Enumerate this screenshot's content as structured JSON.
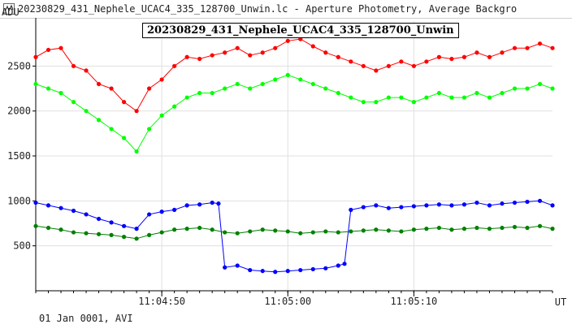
{
  "window": {
    "title": "20230829_431_Nephele_UCAC4_335_128700_Unwin.lc - Aperture Photometry, Average Backgro",
    "icon": "lightcurve-app-icon"
  },
  "footer": "01 Jan 0001, AVI",
  "chart_data": {
    "type": "scatter",
    "title": "20230829_431_Nephele_UCAC4_335_128700_Unwin",
    "ylabel": "ADU",
    "xlabel": "UT",
    "ylim": [
      0,
      3000
    ],
    "xlim": [
      0,
      82
    ],
    "x_tick_labels": [
      {
        "label": "11:04:50",
        "t": 20
      },
      {
        "label": "11:05:00",
        "t": 40
      },
      {
        "label": "11:05:10",
        "t": 60
      }
    ],
    "y_ticks": [
      500,
      1000,
      1500,
      2000,
      2500
    ],
    "grid": true,
    "series": [
      {
        "color": "#ff0000",
        "points": [
          [
            0,
            2600
          ],
          [
            2,
            2680
          ],
          [
            4,
            2700
          ],
          [
            6,
            2500
          ],
          [
            8,
            2450
          ],
          [
            10,
            2300
          ],
          [
            12,
            2250
          ],
          [
            14,
            2100
          ],
          [
            16,
            2000
          ],
          [
            18,
            2250
          ],
          [
            20,
            2350
          ],
          [
            22,
            2500
          ],
          [
            24,
            2600
          ],
          [
            26,
            2580
          ],
          [
            28,
            2620
          ],
          [
            30,
            2650
          ],
          [
            32,
            2700
          ],
          [
            34,
            2620
          ],
          [
            36,
            2650
          ],
          [
            38,
            2700
          ],
          [
            40,
            2780
          ],
          [
            42,
            2800
          ],
          [
            44,
            2720
          ],
          [
            46,
            2650
          ],
          [
            48,
            2600
          ],
          [
            50,
            2550
          ],
          [
            52,
            2500
          ],
          [
            54,
            2450
          ],
          [
            56,
            2500
          ],
          [
            58,
            2550
          ],
          [
            60,
            2500
          ],
          [
            62,
            2550
          ],
          [
            64,
            2600
          ],
          [
            66,
            2580
          ],
          [
            68,
            2600
          ],
          [
            70,
            2650
          ],
          [
            72,
            2600
          ],
          [
            74,
            2650
          ],
          [
            76,
            2700
          ],
          [
            78,
            2700
          ],
          [
            80,
            2750
          ],
          [
            82,
            2700
          ]
        ]
      },
      {
        "color": "#00ff00",
        "points": [
          [
            0,
            2300
          ],
          [
            2,
            2250
          ],
          [
            4,
            2200
          ],
          [
            6,
            2100
          ],
          [
            8,
            2000
          ],
          [
            10,
            1900
          ],
          [
            12,
            1800
          ],
          [
            14,
            1700
          ],
          [
            16,
            1550
          ],
          [
            18,
            1800
          ],
          [
            20,
            1950
          ],
          [
            22,
            2050
          ],
          [
            24,
            2150
          ],
          [
            26,
            2200
          ],
          [
            28,
            2200
          ],
          [
            30,
            2250
          ],
          [
            32,
            2300
          ],
          [
            34,
            2250
          ],
          [
            36,
            2300
          ],
          [
            38,
            2350
          ],
          [
            40,
            2400
          ],
          [
            42,
            2350
          ],
          [
            44,
            2300
          ],
          [
            46,
            2250
          ],
          [
            48,
            2200
          ],
          [
            50,
            2150
          ],
          [
            52,
            2100
          ],
          [
            54,
            2100
          ],
          [
            56,
            2150
          ],
          [
            58,
            2150
          ],
          [
            60,
            2100
          ],
          [
            62,
            2150
          ],
          [
            64,
            2200
          ],
          [
            66,
            2150
          ],
          [
            68,
            2150
          ],
          [
            70,
            2200
          ],
          [
            72,
            2150
          ],
          [
            74,
            2200
          ],
          [
            76,
            2250
          ],
          [
            78,
            2250
          ],
          [
            80,
            2300
          ],
          [
            82,
            2250
          ]
        ]
      },
      {
        "color": "#0000ff",
        "points": [
          [
            0,
            980
          ],
          [
            2,
            950
          ],
          [
            4,
            920
          ],
          [
            6,
            890
          ],
          [
            8,
            850
          ],
          [
            10,
            800
          ],
          [
            12,
            760
          ],
          [
            14,
            720
          ],
          [
            16,
            690
          ],
          [
            18,
            850
          ],
          [
            20,
            880
          ],
          [
            22,
            900
          ],
          [
            24,
            950
          ],
          [
            26,
            960
          ],
          [
            28,
            980
          ],
          [
            29,
            970
          ],
          [
            30,
            260
          ],
          [
            32,
            280
          ],
          [
            34,
            230
          ],
          [
            36,
            220
          ],
          [
            38,
            210
          ],
          [
            40,
            220
          ],
          [
            42,
            230
          ],
          [
            44,
            240
          ],
          [
            46,
            250
          ],
          [
            48,
            280
          ],
          [
            49,
            300
          ],
          [
            50,
            900
          ],
          [
            52,
            930
          ],
          [
            54,
            950
          ],
          [
            56,
            920
          ],
          [
            58,
            930
          ],
          [
            60,
            940
          ],
          [
            62,
            950
          ],
          [
            64,
            960
          ],
          [
            66,
            950
          ],
          [
            68,
            960
          ],
          [
            70,
            980
          ],
          [
            72,
            950
          ],
          [
            74,
            970
          ],
          [
            76,
            980
          ],
          [
            78,
            990
          ],
          [
            80,
            1000
          ],
          [
            82,
            950
          ]
        ]
      },
      {
        "color": "#008000",
        "points": [
          [
            0,
            720
          ],
          [
            2,
            700
          ],
          [
            4,
            680
          ],
          [
            6,
            650
          ],
          [
            8,
            640
          ],
          [
            10,
            630
          ],
          [
            12,
            620
          ],
          [
            14,
            600
          ],
          [
            16,
            580
          ],
          [
            18,
            620
          ],
          [
            20,
            650
          ],
          [
            22,
            680
          ],
          [
            24,
            690
          ],
          [
            26,
            700
          ],
          [
            28,
            680
          ],
          [
            30,
            650
          ],
          [
            32,
            640
          ],
          [
            34,
            660
          ],
          [
            36,
            680
          ],
          [
            38,
            670
          ],
          [
            40,
            660
          ],
          [
            42,
            640
          ],
          [
            44,
            650
          ],
          [
            46,
            660
          ],
          [
            48,
            650
          ],
          [
            50,
            660
          ],
          [
            52,
            670
          ],
          [
            54,
            680
          ],
          [
            56,
            670
          ],
          [
            58,
            660
          ],
          [
            60,
            680
          ],
          [
            62,
            690
          ],
          [
            64,
            700
          ],
          [
            66,
            680
          ],
          [
            68,
            690
          ],
          [
            70,
            700
          ],
          [
            72,
            690
          ],
          [
            74,
            700
          ],
          [
            76,
            710
          ],
          [
            78,
            700
          ],
          [
            80,
            720
          ],
          [
            82,
            690
          ]
        ]
      }
    ]
  }
}
